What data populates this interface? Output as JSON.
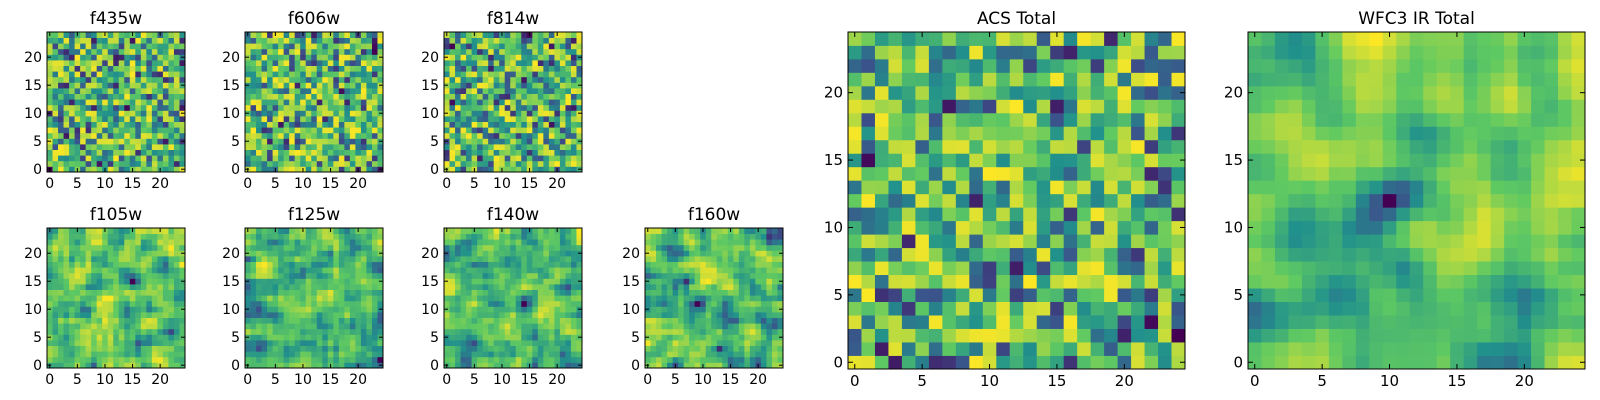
{
  "figure": {
    "colormap": [
      "#440154",
      "#3b528b",
      "#21918c",
      "#5ec962",
      "#fde725"
    ]
  },
  "chart_data": [
    {
      "type": "heatmap",
      "title": "f435w",
      "grid_size": 25,
      "xlim": [
        0,
        24
      ],
      "ylim": [
        0,
        24
      ],
      "x_ticks": [
        "0",
        "5",
        "10",
        "15",
        "20"
      ],
      "y_ticks": [
        "0",
        "5",
        "10",
        "15",
        "20"
      ],
      "smoothness": 0,
      "seed": 11
    },
    {
      "type": "heatmap",
      "title": "f606w",
      "grid_size": 25,
      "xlim": [
        0,
        24
      ],
      "ylim": [
        0,
        24
      ],
      "x_ticks": [
        "0",
        "5",
        "10",
        "15",
        "20"
      ],
      "y_ticks": [
        "0",
        "5",
        "10",
        "15",
        "20"
      ],
      "smoothness": 0,
      "seed": 23
    },
    {
      "type": "heatmap",
      "title": "f814w",
      "grid_size": 25,
      "xlim": [
        0,
        24
      ],
      "ylim": [
        0,
        24
      ],
      "x_ticks": [
        "0",
        "5",
        "10",
        "15",
        "20"
      ],
      "y_ticks": [
        "0",
        "5",
        "10",
        "15",
        "20"
      ],
      "smoothness": 0,
      "seed": 37
    },
    {
      "type": "heatmap",
      "title": "f105w",
      "grid_size": 25,
      "xlim": [
        0,
        24
      ],
      "ylim": [
        0,
        24
      ],
      "x_ticks": [
        "0",
        "5",
        "10",
        "15",
        "20"
      ],
      "y_ticks": [
        "0",
        "5",
        "10",
        "15",
        "20"
      ],
      "smoothness": 1,
      "seed": 41
    },
    {
      "type": "heatmap",
      "title": "f125w",
      "grid_size": 25,
      "xlim": [
        0,
        24
      ],
      "ylim": [
        0,
        24
      ],
      "x_ticks": [
        "0",
        "5",
        "10",
        "15",
        "20"
      ],
      "y_ticks": [
        "0",
        "5",
        "10",
        "15",
        "20"
      ],
      "smoothness": 1,
      "seed": 53
    },
    {
      "type": "heatmap",
      "title": "f140w",
      "grid_size": 25,
      "xlim": [
        0,
        24
      ],
      "ylim": [
        0,
        24
      ],
      "x_ticks": [
        "0",
        "5",
        "10",
        "15",
        "20"
      ],
      "y_ticks": [
        "0",
        "5",
        "10",
        "15",
        "20"
      ],
      "smoothness": 1,
      "seed": 67
    },
    {
      "type": "heatmap",
      "title": "f160w",
      "grid_size": 25,
      "xlim": [
        0,
        24
      ],
      "ylim": [
        0,
        24
      ],
      "x_ticks": [
        "0",
        "5",
        "10",
        "15",
        "20"
      ],
      "y_ticks": [
        "0",
        "5",
        "10",
        "15",
        "20"
      ],
      "smoothness": 1,
      "seed": 79
    },
    {
      "type": "heatmap",
      "title": "ACS Total",
      "grid_size": 25,
      "xlim": [
        0,
        24
      ],
      "ylim": [
        0,
        24
      ],
      "x_ticks": [
        "0",
        "5",
        "10",
        "15",
        "20"
      ],
      "y_ticks": [
        "0",
        "5",
        "10",
        "15",
        "20"
      ],
      "smoothness": 0,
      "seed": 97
    },
    {
      "type": "heatmap",
      "title": "WFC3 IR Total",
      "grid_size": 25,
      "xlim": [
        0,
        24
      ],
      "ylim": [
        0,
        24
      ],
      "x_ticks": [
        "0",
        "5",
        "10",
        "15",
        "20"
      ],
      "y_ticks": [
        "0",
        "5",
        "10",
        "15",
        "20"
      ],
      "smoothness": 2,
      "seed": 101
    }
  ]
}
